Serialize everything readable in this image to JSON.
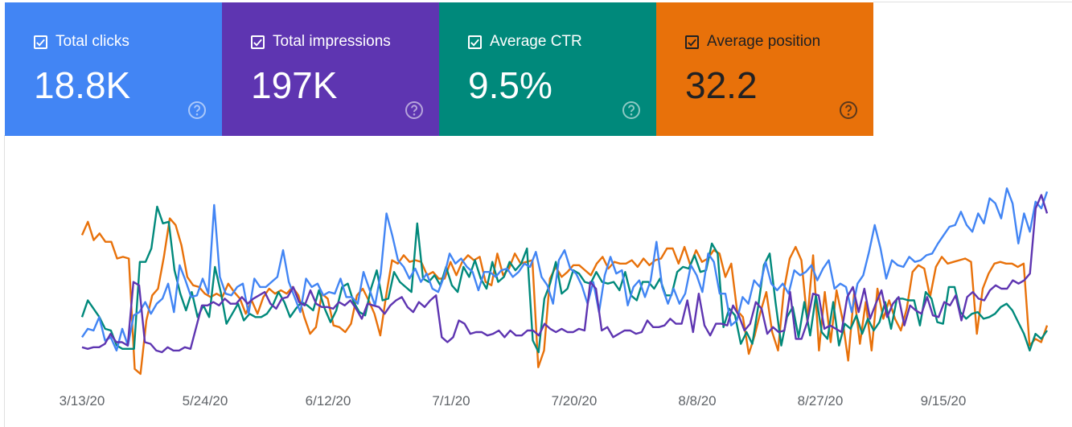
{
  "metrics": [
    {
      "key": "clicks",
      "label": "Total clicks",
      "value": "18.8K",
      "color": "#4285f4",
      "checked": true
    },
    {
      "key": "impr",
      "label": "Total impressions",
      "value": "197K",
      "color": "#5e35b1",
      "checked": true
    },
    {
      "key": "ctr",
      "label": "Average CTR",
      "value": "9.5%",
      "color": "#00897b",
      "checked": true
    },
    {
      "key": "pos",
      "label": "Average position",
      "value": "32.2",
      "color": "#e8710a",
      "checked": true
    }
  ],
  "icons": {
    "checkbox": "checkbox-checked-icon",
    "help": "help-circle-icon"
  },
  "chart_data": {
    "type": "line",
    "grid": false,
    "legend": "none",
    "x_ticks": [
      "3/13/20",
      "5/24/20",
      "6/12/20",
      "7/1/20",
      "7/20/20",
      "8/8/20",
      "8/27/20",
      "9/15/20"
    ],
    "ylim": [
      0,
      1
    ],
    "series": [
      {
        "key": "pos",
        "color": "#e8710a",
        "values": [
          0.7,
          0.78,
          0.67,
          0.71,
          0.66,
          0.66,
          0.56,
          0.57,
          0.56,
          -0.1,
          -0.13,
          0.19,
          0.34,
          0.38,
          0.57,
          0.8,
          0.76,
          0.64,
          0.45,
          0.4,
          0.39,
          0.35,
          0.33,
          0.35,
          0.33,
          0.41,
          0.36,
          0.32,
          0.23,
          0.31,
          0.23,
          0.33,
          0.38,
          0.35,
          0.37,
          0.35,
          0.39,
          0.34,
          0.21,
          0.11,
          0.15,
          0.35,
          0.32,
          0.16,
          0.15,
          0.12,
          0.17,
          0.34,
          0.38,
          0.31,
          0.23,
          0.1,
          0.34,
          0.55,
          0.53,
          0.58,
          0.54,
          0.55,
          0.54,
          0.46,
          0.48,
          0.44,
          0.44,
          0.54,
          0.46,
          0.54,
          0.58,
          0.55,
          0.57,
          0.42,
          0.4,
          0.59,
          0.46,
          0.5,
          0.59,
          0.53,
          0.54,
          0.55,
          -0.09,
          0.01,
          0.44,
          0.51,
          0.45,
          0.48,
          0.52,
          0.52,
          0.49,
          0.46,
          0.53,
          0.57,
          0.5,
          0.54,
          0.53,
          0.53,
          0.55,
          0.51,
          0.56,
          0.52,
          0.55,
          0.56,
          0.62,
          0.62,
          0.53,
          0.63,
          0.52,
          0.61,
          0.54,
          0.56,
          0.61,
          0.59,
          0.45,
          0.53,
          0.25,
          0.21,
          -0.01,
          0.1,
          0.24,
          0.36,
          0.12,
          0.01,
          0.37,
          0.56,
          0.63,
          0.55,
          0.19,
          0.58,
          0.01,
          0.36,
          0.06,
          0.37,
          0.2,
          -0.05,
          0.35,
          0.05,
          0.3,
          0.01,
          0.38,
          0.2,
          0.31,
          0.2,
          0.13,
          0.26,
          0.48,
          0.52,
          0.5,
          0.33,
          0.51,
          0.57,
          0.53,
          0.54,
          0.55,
          0.56,
          0.54,
          0.11,
          0.38,
          0.47,
          0.53,
          0.54,
          0.53,
          0.53,
          0.51,
          0.53,
          0.04,
          0.08,
          0.06,
          0.16
        ]
      },
      {
        "key": "ctr",
        "color": "#00897b",
        "values": [
          0.21,
          0.31,
          0.26,
          0.21,
          0.14,
          0.13,
          0.04,
          0.02,
          0.02,
          0.02,
          0.54,
          0.54,
          0.62,
          0.87,
          0.77,
          0.78,
          0.49,
          0.35,
          0.25,
          0.36,
          0.21,
          0.28,
          0.21,
          0.51,
          0.36,
          0.17,
          0.23,
          0.29,
          0.19,
          0.23,
          0.21,
          0.21,
          0.23,
          0.28,
          0.36,
          0.3,
          0.21,
          0.26,
          0.3,
          0.28,
          0.25,
          0.37,
          0.26,
          0.18,
          0.25,
          0.39,
          0.41,
          0.3,
          0.24,
          0.22,
          0.38,
          0.49,
          0.31,
          0.32,
          0.48,
          0.42,
          0.39,
          0.36,
          0.77,
          0.44,
          0.42,
          0.46,
          0.4,
          0.51,
          0.4,
          0.36,
          0.51,
          0.45,
          0.55,
          0.44,
          0.38,
          0.54,
          0.42,
          0.45,
          0.54,
          0.49,
          0.53,
          0.62,
          0.07,
          0.0,
          0.32,
          0.41,
          0.54,
          0.35,
          0.38,
          0.49,
          0.47,
          0.42,
          0.41,
          0.48,
          0.42,
          0.41,
          0.42,
          0.37,
          0.48,
          0.34,
          0.31,
          0.42,
          0.42,
          0.38,
          0.44,
          0.34,
          0.34,
          0.48,
          0.51,
          0.5,
          0.58,
          0.48,
          0.49,
          0.65,
          0.59,
          0.15,
          0.26,
          0.22,
          0.05,
          0.12,
          0.05,
          0.27,
          0.52,
          0.59,
          0.3,
          0.04,
          0.21,
          0.27,
          0.09,
          0.3,
          0.1,
          0.34,
          0.12,
          0.08,
          0.3,
          0.04,
          0.17,
          0.14,
          0.22,
          0.11,
          0.2,
          0.13,
          0.18,
          0.3,
          0.14,
          0.32,
          0.32,
          0.31,
          0.31,
          0.16,
          0.36,
          0.32,
          0.18,
          0.17,
          0.39,
          0.39,
          0.24,
          0.2,
          0.23,
          0.24,
          0.2,
          0.21,
          0.23,
          0.27,
          0.29,
          0.25,
          0.18,
          0.11,
          0.01,
          0.11,
          0.08,
          0.13
        ]
      },
      {
        "key": "clicks",
        "color": "#4285f4",
        "values": [
          0.09,
          0.14,
          0.13,
          0.21,
          0.07,
          0.09,
          0.01,
          0.14,
          0.04,
          0.22,
          0.24,
          0.3,
          0.23,
          0.29,
          0.32,
          0.41,
          0.24,
          0.52,
          0.43,
          0.33,
          0.34,
          0.44,
          0.35,
          0.88,
          0.45,
          0.35,
          0.34,
          0.39,
          0.41,
          0.23,
          0.44,
          0.39,
          0.39,
          0.42,
          0.45,
          0.61,
          0.42,
          0.33,
          0.24,
          0.44,
          0.39,
          0.41,
          0.34,
          0.36,
          0.35,
          0.44,
          0.33,
          0.33,
          0.29,
          0.48,
          0.38,
          0.28,
          0.47,
          0.83,
          0.7,
          0.55,
          0.51,
          0.44,
          0.5,
          0.42,
          0.47,
          0.38,
          0.36,
          0.45,
          0.59,
          0.53,
          0.56,
          0.51,
          0.48,
          0.37,
          0.48,
          0.48,
          0.45,
          0.49,
          0.5,
          0.45,
          0.48,
          0.53,
          0.51,
          0.6,
          0.45,
          0.4,
          0.29,
          0.55,
          0.61,
          0.5,
          0.47,
          0.4,
          0.29,
          0.42,
          0.24,
          0.46,
          0.57,
          0.47,
          0.49,
          0.28,
          0.39,
          0.43,
          0.33,
          0.43,
          0.66,
          0.39,
          0.29,
          0.38,
          0.29,
          0.35,
          0.52,
          0.46,
          0.36,
          0.59,
          0.54,
          0.35,
          0.35,
          0.16,
          0.19,
          0.33,
          0.29,
          0.43,
          0.39,
          0.54,
          0.41,
          0.37,
          0.41,
          0.35,
          0.49,
          0.46,
          0.48,
          0.52,
          0.43,
          0.5,
          0.55,
          0.38,
          0.41,
          0.39,
          0.24,
          0.41,
          0.46,
          0.6,
          0.76,
          0.62,
          0.44,
          0.55,
          0.52,
          0.51,
          0.57,
          0.54,
          0.55,
          0.58,
          0.59,
          0.65,
          0.7,
          0.75,
          0.76,
          0.84,
          0.76,
          0.72,
          0.83,
          0.77,
          0.92,
          0.89,
          0.8,
          0.98,
          0.89,
          0.65,
          0.83,
          0.72,
          0.9,
          0.86,
          0.96
        ]
      },
      {
        "key": "impr",
        "color": "#5e35b1",
        "values": [
          0.03,
          0.02,
          0.03,
          0.03,
          0.05,
          0.11,
          0.06,
          0.06,
          0.04,
          0.42,
          0.4,
          0.06,
          0.05,
          0.01,
          0.0,
          0.03,
          0.01,
          0.01,
          0.03,
          0.02,
          0.15,
          0.28,
          0.28,
          0.3,
          0.28,
          0.32,
          0.29,
          0.29,
          0.33,
          0.29,
          0.32,
          0.34,
          0.36,
          0.29,
          0.26,
          0.32,
          0.33,
          0.39,
          0.3,
          0.28,
          0.37,
          0.29,
          0.27,
          0.27,
          0.26,
          0.3,
          0.28,
          0.31,
          0.26,
          0.2,
          0.29,
          0.28,
          0.27,
          0.23,
          0.28,
          0.31,
          0.33,
          0.27,
          0.24,
          0.3,
          0.27,
          0.31,
          0.34,
          0.09,
          0.06,
          0.09,
          0.19,
          0.17,
          0.11,
          0.12,
          0.12,
          0.1,
          0.11,
          0.13,
          0.09,
          0.13,
          0.1,
          0.1,
          0.13,
          0.13,
          0.1,
          0.17,
          0.14,
          0.12,
          0.14,
          0.12,
          0.12,
          0.14,
          0.13,
          0.42,
          0.38,
          0.13,
          0.15,
          0.09,
          0.11,
          0.13,
          0.13,
          0.11,
          0.12,
          0.19,
          0.15,
          0.15,
          0.16,
          0.2,
          0.17,
          0.17,
          0.31,
          0.12,
          0.35,
          0.16,
          0.1,
          0.17,
          0.17,
          0.16,
          0.28,
          0.22,
          0.13,
          0.17,
          0.3,
          0.26,
          0.11,
          0.15,
          0.12,
          0.13,
          0.36,
          0.08,
          0.08,
          0.18,
          0.35,
          0.34,
          0.14,
          0.16,
          0.14,
          0.12,
          0.33,
          0.39,
          0.24,
          0.38,
          0.2,
          0.29,
          0.37,
          0.21,
          0.29,
          0.33,
          0.16,
          0.28,
          0.25,
          0.23,
          0.33,
          0.22,
          0.21,
          0.3,
          0.28,
          0.34,
          0.19,
          0.33,
          0.36,
          0.32,
          0.31,
          0.37,
          0.4,
          0.38,
          0.38,
          0.43,
          0.41,
          0.43,
          0.47,
          0.86,
          0.94,
          0.83
        ]
      }
    ]
  }
}
